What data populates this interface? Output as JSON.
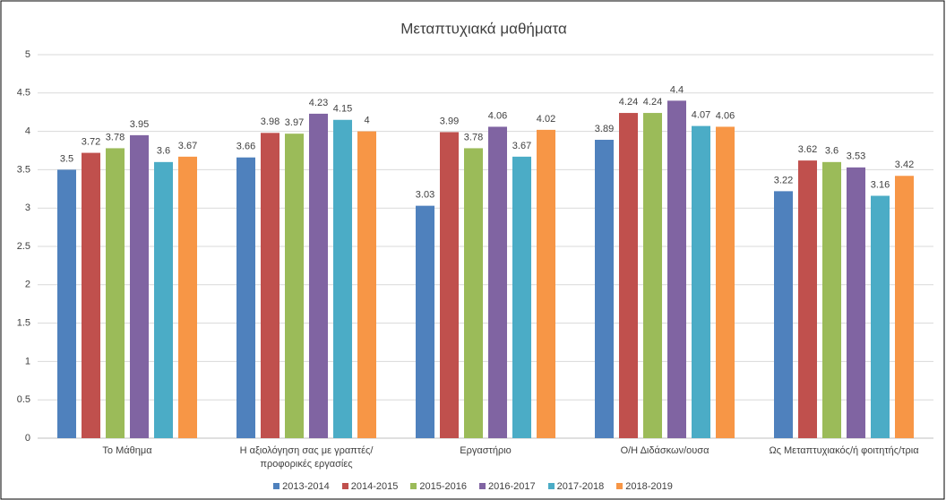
{
  "chart_data": {
    "type": "bar",
    "title": "Μεταπτυχιακά μαθήματα",
    "categories": [
      "Το Μάθημα",
      "Η αξιολόγηση σας με γραπτές/προφορικές εργασίες",
      "Εργαστήριο",
      "Ο/Η Διδάσκων/ουσα",
      "Ως Μεταπτυχιακός/ή φοιτητής/τρια"
    ],
    "series": [
      {
        "name": "2013-2014",
        "color": "#4f81bd",
        "values": [
          3.5,
          3.66,
          3.03,
          3.89,
          3.22
        ]
      },
      {
        "name": "2014-2015",
        "color": "#c0504d",
        "values": [
          3.72,
          3.98,
          3.99,
          4.24,
          3.62
        ]
      },
      {
        "name": "2015-2016",
        "color": "#9bbb59",
        "values": [
          3.78,
          3.97,
          3.78,
          4.24,
          3.6
        ]
      },
      {
        "name": "2016-2017",
        "color": "#8064a2",
        "values": [
          3.95,
          4.23,
          4.06,
          4.4,
          3.53
        ]
      },
      {
        "name": "2017-2018",
        "color": "#4bacc6",
        "values": [
          3.6,
          4.15,
          3.67,
          4.07,
          3.16
        ]
      },
      {
        "name": "2018-2019",
        "color": "#f79646",
        "values": [
          3.67,
          4,
          4.02,
          4.06,
          3.42
        ]
      }
    ],
    "ylim": [
      0,
      5
    ],
    "yticks": [
      0,
      0.5,
      1,
      1.5,
      2,
      2.5,
      3,
      3.5,
      4,
      4.5,
      5
    ],
    "grid": true,
    "legend": "bottom"
  }
}
